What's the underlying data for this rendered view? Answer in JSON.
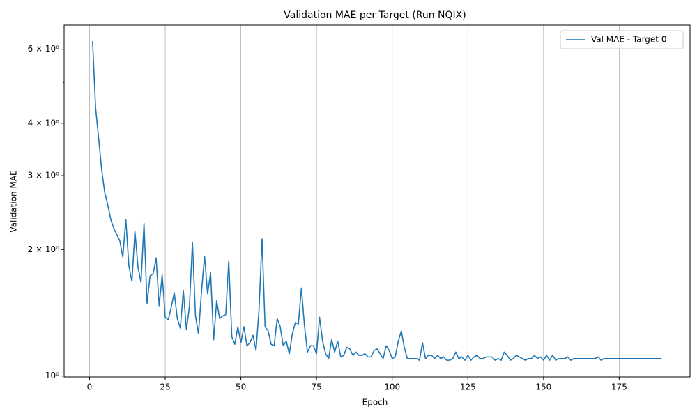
{
  "chart_data": {
    "type": "line",
    "title": "Validation MAE per Target (Run NQIX)",
    "x_label": "Epoch",
    "y_label": "Validation MAE",
    "x": [
      1,
      2,
      3,
      4,
      5,
      6,
      7,
      8,
      9,
      10,
      11,
      12,
      13,
      14,
      15,
      16,
      17,
      18,
      19,
      20,
      21,
      22,
      23,
      24,
      25,
      26,
      27,
      28,
      29,
      30,
      31,
      32,
      33,
      34,
      35,
      36,
      37,
      38,
      39,
      40,
      41,
      42,
      43,
      44,
      45,
      46,
      47,
      48,
      49,
      50,
      51,
      52,
      53,
      54,
      55,
      56,
      57,
      58,
      59,
      60,
      61,
      62,
      63,
      64,
      65,
      66,
      67,
      68,
      69,
      70,
      71,
      72,
      73,
      74,
      75,
      76,
      77,
      78,
      79,
      80,
      81,
      82,
      83,
      84,
      85,
      86,
      87,
      88,
      89,
      90,
      91,
      92,
      93,
      94,
      95,
      96,
      97,
      98,
      99,
      100,
      101,
      102,
      103,
      104,
      105,
      106,
      107,
      108,
      109,
      110,
      111,
      112,
      113,
      114,
      115,
      116,
      117,
      118,
      119,
      120,
      121,
      122,
      123,
      124,
      125,
      126,
      127,
      128,
      129,
      130,
      131,
      132,
      133,
      134,
      135,
      136,
      137,
      138,
      139,
      140,
      141,
      142,
      143,
      144,
      145,
      146,
      147,
      148,
      149,
      150,
      151,
      152,
      153,
      154,
      155,
      156,
      157,
      158,
      159,
      160,
      161,
      162,
      163,
      164,
      165,
      166,
      167,
      168,
      169,
      170,
      171,
      172,
      173,
      174,
      175,
      176,
      177,
      178,
      179,
      180,
      181,
      182,
      183,
      184,
      185,
      186,
      187,
      188,
      189
    ],
    "series": [
      {
        "name": "Val MAE - Target 0",
        "color": "#1f77b4",
        "values": [
          6.27,
          4.35,
          3.69,
          3.1,
          2.74,
          2.56,
          2.36,
          2.25,
          2.17,
          2.1,
          1.92,
          2.36,
          1.83,
          1.68,
          2.21,
          1.82,
          1.67,
          2.31,
          1.49,
          1.73,
          1.75,
          1.91,
          1.47,
          1.74,
          1.38,
          1.36,
          1.46,
          1.58,
          1.37,
          1.3,
          1.6,
          1.29,
          1.46,
          2.08,
          1.39,
          1.26,
          1.59,
          1.93,
          1.57,
          1.76,
          1.22,
          1.51,
          1.37,
          1.39,
          1.4,
          1.88,
          1.24,
          1.19,
          1.31,
          1.2,
          1.31,
          1.18,
          1.2,
          1.25,
          1.15,
          1.44,
          2.12,
          1.31,
          1.28,
          1.19,
          1.18,
          1.37,
          1.31,
          1.18,
          1.21,
          1.13,
          1.26,
          1.34,
          1.33,
          1.62,
          1.32,
          1.14,
          1.18,
          1.18,
          1.13,
          1.38,
          1.21,
          1.13,
          1.1,
          1.22,
          1.14,
          1.21,
          1.11,
          1.12,
          1.17,
          1.16,
          1.12,
          1.14,
          1.12,
          1.12,
          1.13,
          1.11,
          1.11,
          1.15,
          1.16,
          1.13,
          1.1,
          1.18,
          1.15,
          1.1,
          1.11,
          1.21,
          1.28,
          1.17,
          1.1,
          1.1,
          1.1,
          1.1,
          1.09,
          1.2,
          1.1,
          1.12,
          1.12,
          1.1,
          1.12,
          1.1,
          1.11,
          1.09,
          1.09,
          1.1,
          1.14,
          1.1,
          1.11,
          1.09,
          1.12,
          1.09,
          1.11,
          1.12,
          1.1,
          1.1,
          1.11,
          1.11,
          1.11,
          1.09,
          1.1,
          1.09,
          1.14,
          1.12,
          1.09,
          1.1,
          1.12,
          1.11,
          1.1,
          1.09,
          1.1,
          1.1,
          1.12,
          1.1,
          1.11,
          1.09,
          1.12,
          1.09,
          1.12,
          1.09,
          1.1,
          1.1,
          1.1,
          1.11,
          1.09,
          1.1,
          1.1,
          1.1,
          1.1,
          1.1,
          1.1,
          1.1,
          1.1,
          1.11,
          1.09,
          1.1,
          1.1,
          1.1,
          1.1,
          1.1,
          1.1,
          1.1,
          1.1,
          1.1,
          1.1,
          1.1,
          1.1,
          1.1,
          1.1,
          1.1,
          1.1,
          1.1,
          1.1,
          1.1,
          1.1
        ]
      }
    ],
    "xlim": [
      -8.4,
      198.4
    ],
    "xticks": [
      0,
      25,
      50,
      75,
      100,
      125,
      150,
      175
    ],
    "ylim": [
      0.995,
      6.85
    ],
    "y_log": true,
    "yticks": [
      {
        "value": 1,
        "label": "10⁰"
      },
      {
        "value": 2,
        "label": "2 × 10⁰"
      },
      {
        "value": 3,
        "label": "3 × 10⁰"
      },
      {
        "value": 4,
        "label": "4 × 10⁰"
      },
      {
        "value": 6,
        "label": "6 × 10⁰"
      }
    ],
    "minor_yticks": [
      5
    ],
    "grid_x": true,
    "legend": "upper right"
  }
}
